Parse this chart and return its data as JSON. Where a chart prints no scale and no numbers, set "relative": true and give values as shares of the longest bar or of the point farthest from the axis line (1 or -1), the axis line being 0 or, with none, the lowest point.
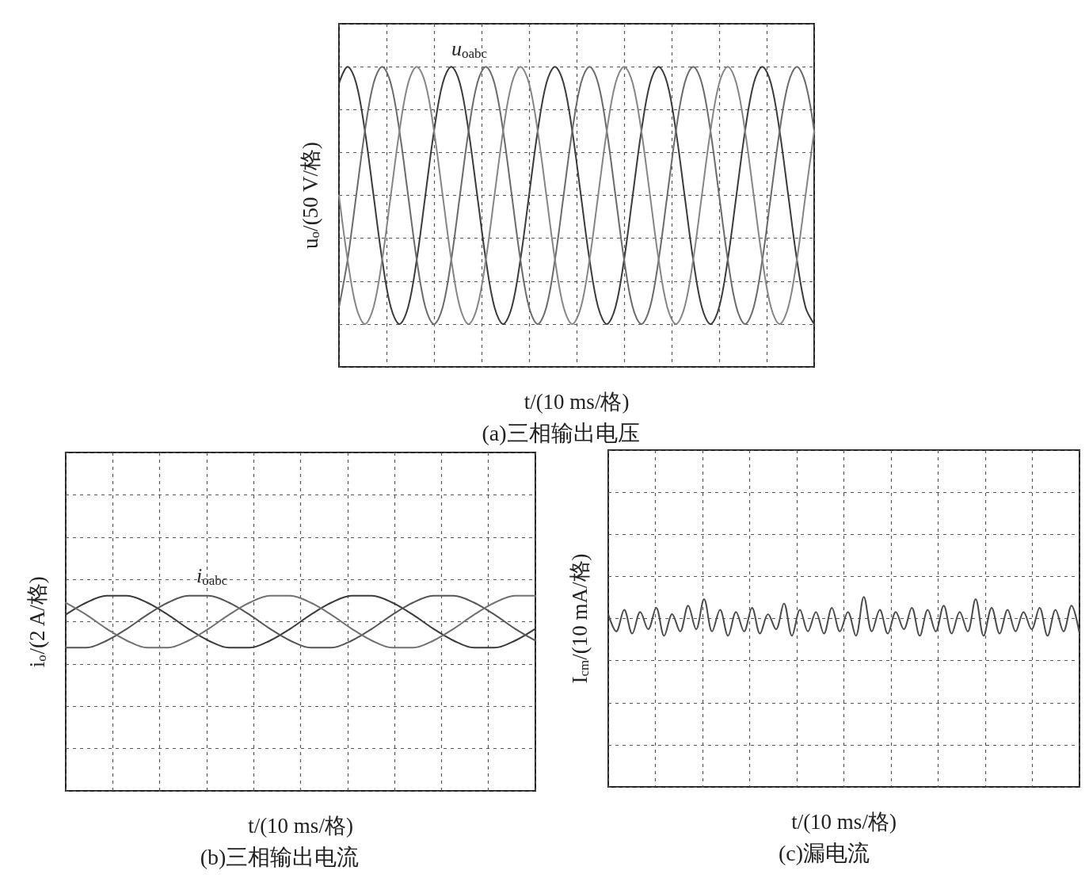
{
  "chart_data": [
    {
      "type": "line",
      "relative": true,
      "title": "(a)三相输出电压",
      "xlabel": "t/(10 ms/格)",
      "ylabel": "u$_{o}$/(50 V/格)",
      "annotations": [
        "u$_{oabc}$"
      ],
      "grid": true,
      "marker": "none",
      "line_style": "solid",
      "categories": [
        null,
        null,
        null,
        null,
        null,
        null,
        null,
        null,
        null,
        null,
        null,
        null,
        null,
        null,
        null,
        null,
        null,
        null,
        null,
        null,
        null,
        null,
        null,
        null,
        null,
        null,
        null,
        null,
        null,
        null,
        null,
        null,
        null,
        null,
        null,
        null,
        null,
        null,
        null,
        null,
        null,
        null,
        null,
        null,
        null,
        null,
        null,
        null,
        null,
        null,
        null,
        null,
        null,
        null,
        null,
        null
      ],
      "series": [
        {
          "color": "#3a3a3a",
          "values": [
            0.87,
            1,
            0.87,
            0.5,
            0,
            -0.5,
            -0.87,
            -1,
            -0.87,
            -0.5,
            0,
            0.5,
            0.87,
            1,
            0.87,
            0.5,
            0,
            -0.5,
            -0.87,
            -1,
            -0.87,
            -0.5,
            0,
            0.5,
            0.87,
            1,
            0.87,
            0.5,
            0,
            -0.5,
            -0.87,
            -1,
            -0.87,
            -0.5,
            0,
            0.5,
            0.87,
            1,
            0.87,
            0.5,
            0,
            -0.5,
            -0.87,
            -1,
            -0.87,
            -0.5,
            0,
            0.5,
            0.87,
            1,
            0.87,
            0.5,
            0,
            -0.5,
            -0.87,
            -1
          ]
        },
        {
          "color": "#6a6a6a",
          "values": [
            -0.87,
            -0.5,
            0,
            0.5,
            0.87,
            1,
            0.87,
            0.5,
            0,
            -0.5,
            -0.87,
            -1,
            -0.87,
            -0.5,
            0,
            0.5,
            0.87,
            1,
            0.87,
            0.5,
            0,
            -0.5,
            -0.87,
            -1,
            -0.87,
            -0.5,
            0,
            0.5,
            0.87,
            1,
            0.87,
            0.5,
            0,
            -0.5,
            -0.87,
            -1,
            -0.87,
            -0.5,
            0,
            0.5,
            0.87,
            1,
            0.87,
            0.5,
            0,
            -0.5,
            -0.87,
            -1,
            -0.87,
            -0.5,
            0,
            0.5,
            0.87,
            1,
            0.87,
            0.5
          ]
        },
        {
          "color": "#858585",
          "values": [
            0,
            -0.5,
            -0.87,
            -1,
            -0.87,
            -0.5,
            0,
            0.5,
            0.87,
            1,
            0.87,
            0.5,
            0,
            -0.5,
            -0.87,
            -1,
            -0.87,
            -0.5,
            0,
            0.5,
            0.87,
            1,
            0.87,
            0.5,
            0,
            -0.5,
            -0.87,
            -1,
            -0.87,
            -0.5,
            0,
            0.5,
            0.87,
            1,
            0.87,
            0.5,
            0,
            -0.5,
            -0.87,
            -1,
            -0.87,
            -0.5,
            0,
            0.5,
            0.87,
            1,
            0.87,
            0.5,
            0,
            -0.5,
            -0.87,
            -1,
            -0.87,
            -0.5,
            0,
            0.5
          ]
        }
      ]
    },
    {
      "type": "line",
      "relative": true,
      "title": "(b)三相输出电流",
      "xlabel": "t/(10 ms/格)",
      "ylabel": "i$_{o}$/(2 A/格)",
      "annotations": [
        "i$_{oabc}$"
      ],
      "grid": true,
      "marker": "none",
      "line_style": "solid",
      "categories": [
        null,
        null,
        null,
        null,
        null,
        null,
        null,
        null,
        null,
        null,
        null,
        null,
        null,
        null,
        null,
        null,
        null,
        null,
        null,
        null,
        null,
        null,
        null,
        null
      ],
      "series": [
        {
          "color": "#3a3a3a",
          "values": [
            0.27,
            0.73,
            1,
            1,
            0.73,
            0.27,
            -0.27,
            -0.73,
            -1,
            -1,
            -0.73,
            -0.27,
            0.27,
            0.73,
            1,
            1,
            0.73,
            0.27,
            -0.27,
            -0.73,
            -1,
            -1,
            -0.73,
            -0.27
          ]
        },
        {
          "color": "#555555",
          "values": [
            -1,
            -1,
            -0.73,
            -0.27,
            0.27,
            0.73,
            1,
            1,
            0.73,
            0.27,
            -0.27,
            -0.73,
            -1,
            -1,
            -0.73,
            -0.27,
            0.27,
            0.73,
            1,
            1,
            0.73,
            0.27,
            -0.27,
            -0.73
          ]
        },
        {
          "color": "#707070",
          "values": [
            0.73,
            0.27,
            -0.27,
            -0.73,
            -1,
            -1,
            -0.73,
            -0.27,
            0.27,
            0.73,
            1,
            1,
            0.73,
            0.27,
            -0.27,
            -0.73,
            -1,
            -1,
            -0.73,
            -0.27,
            0.27,
            0.73,
            1,
            1
          ]
        }
      ]
    },
    {
      "type": "line",
      "relative": true,
      "title": "(c)漏电流",
      "xlabel": "t/(10 ms/格)",
      "ylabel": "I$_{cm}$/(10 mA/格)",
      "grid": true,
      "marker": "none",
      "line_style": "solid",
      "categories": [
        null,
        null,
        null,
        null,
        null,
        null,
        null,
        null,
        null,
        null,
        null,
        null,
        null,
        null,
        null,
        null,
        null,
        null,
        null,
        null,
        null,
        null,
        null,
        null,
        null,
        null,
        null,
        null,
        null,
        null,
        null,
        null,
        null,
        null,
        null,
        null,
        null,
        null,
        null,
        null,
        null,
        null,
        null,
        null,
        null,
        null,
        null,
        null,
        null,
        null,
        null,
        null,
        null,
        null,
        null,
        null,
        null,
        null,
        null,
        null
      ],
      "series": [
        {
          "color": "#4a4a4a",
          "values": [
            0.2,
            -0.6,
            0.4,
            -0.7,
            0.3,
            -0.5,
            0.5,
            -0.8,
            0.2,
            -0.6,
            0.6,
            -0.5,
            0.9,
            -0.6,
            0.4,
            -0.8,
            0.3,
            -0.6,
            0.5,
            -0.7,
            0.2,
            -0.5,
            0.7,
            -0.8,
            0.4,
            -0.6,
            0.3,
            -0.7,
            0.5,
            -0.6,
            0.3,
            -0.8,
            1,
            -0.6,
            0.4,
            -0.7,
            0.3,
            -0.5,
            0.5,
            -0.8,
            0.4,
            -0.6,
            0.6,
            -0.7,
            0.3,
            -0.6,
            0.9,
            -0.8,
            0.5,
            -0.7,
            0.4,
            -0.6,
            0.3,
            -0.5,
            0.5,
            -0.8,
            0.4,
            -0.6,
            0.6,
            -0.7
          ]
        }
      ]
    }
  ]
}
